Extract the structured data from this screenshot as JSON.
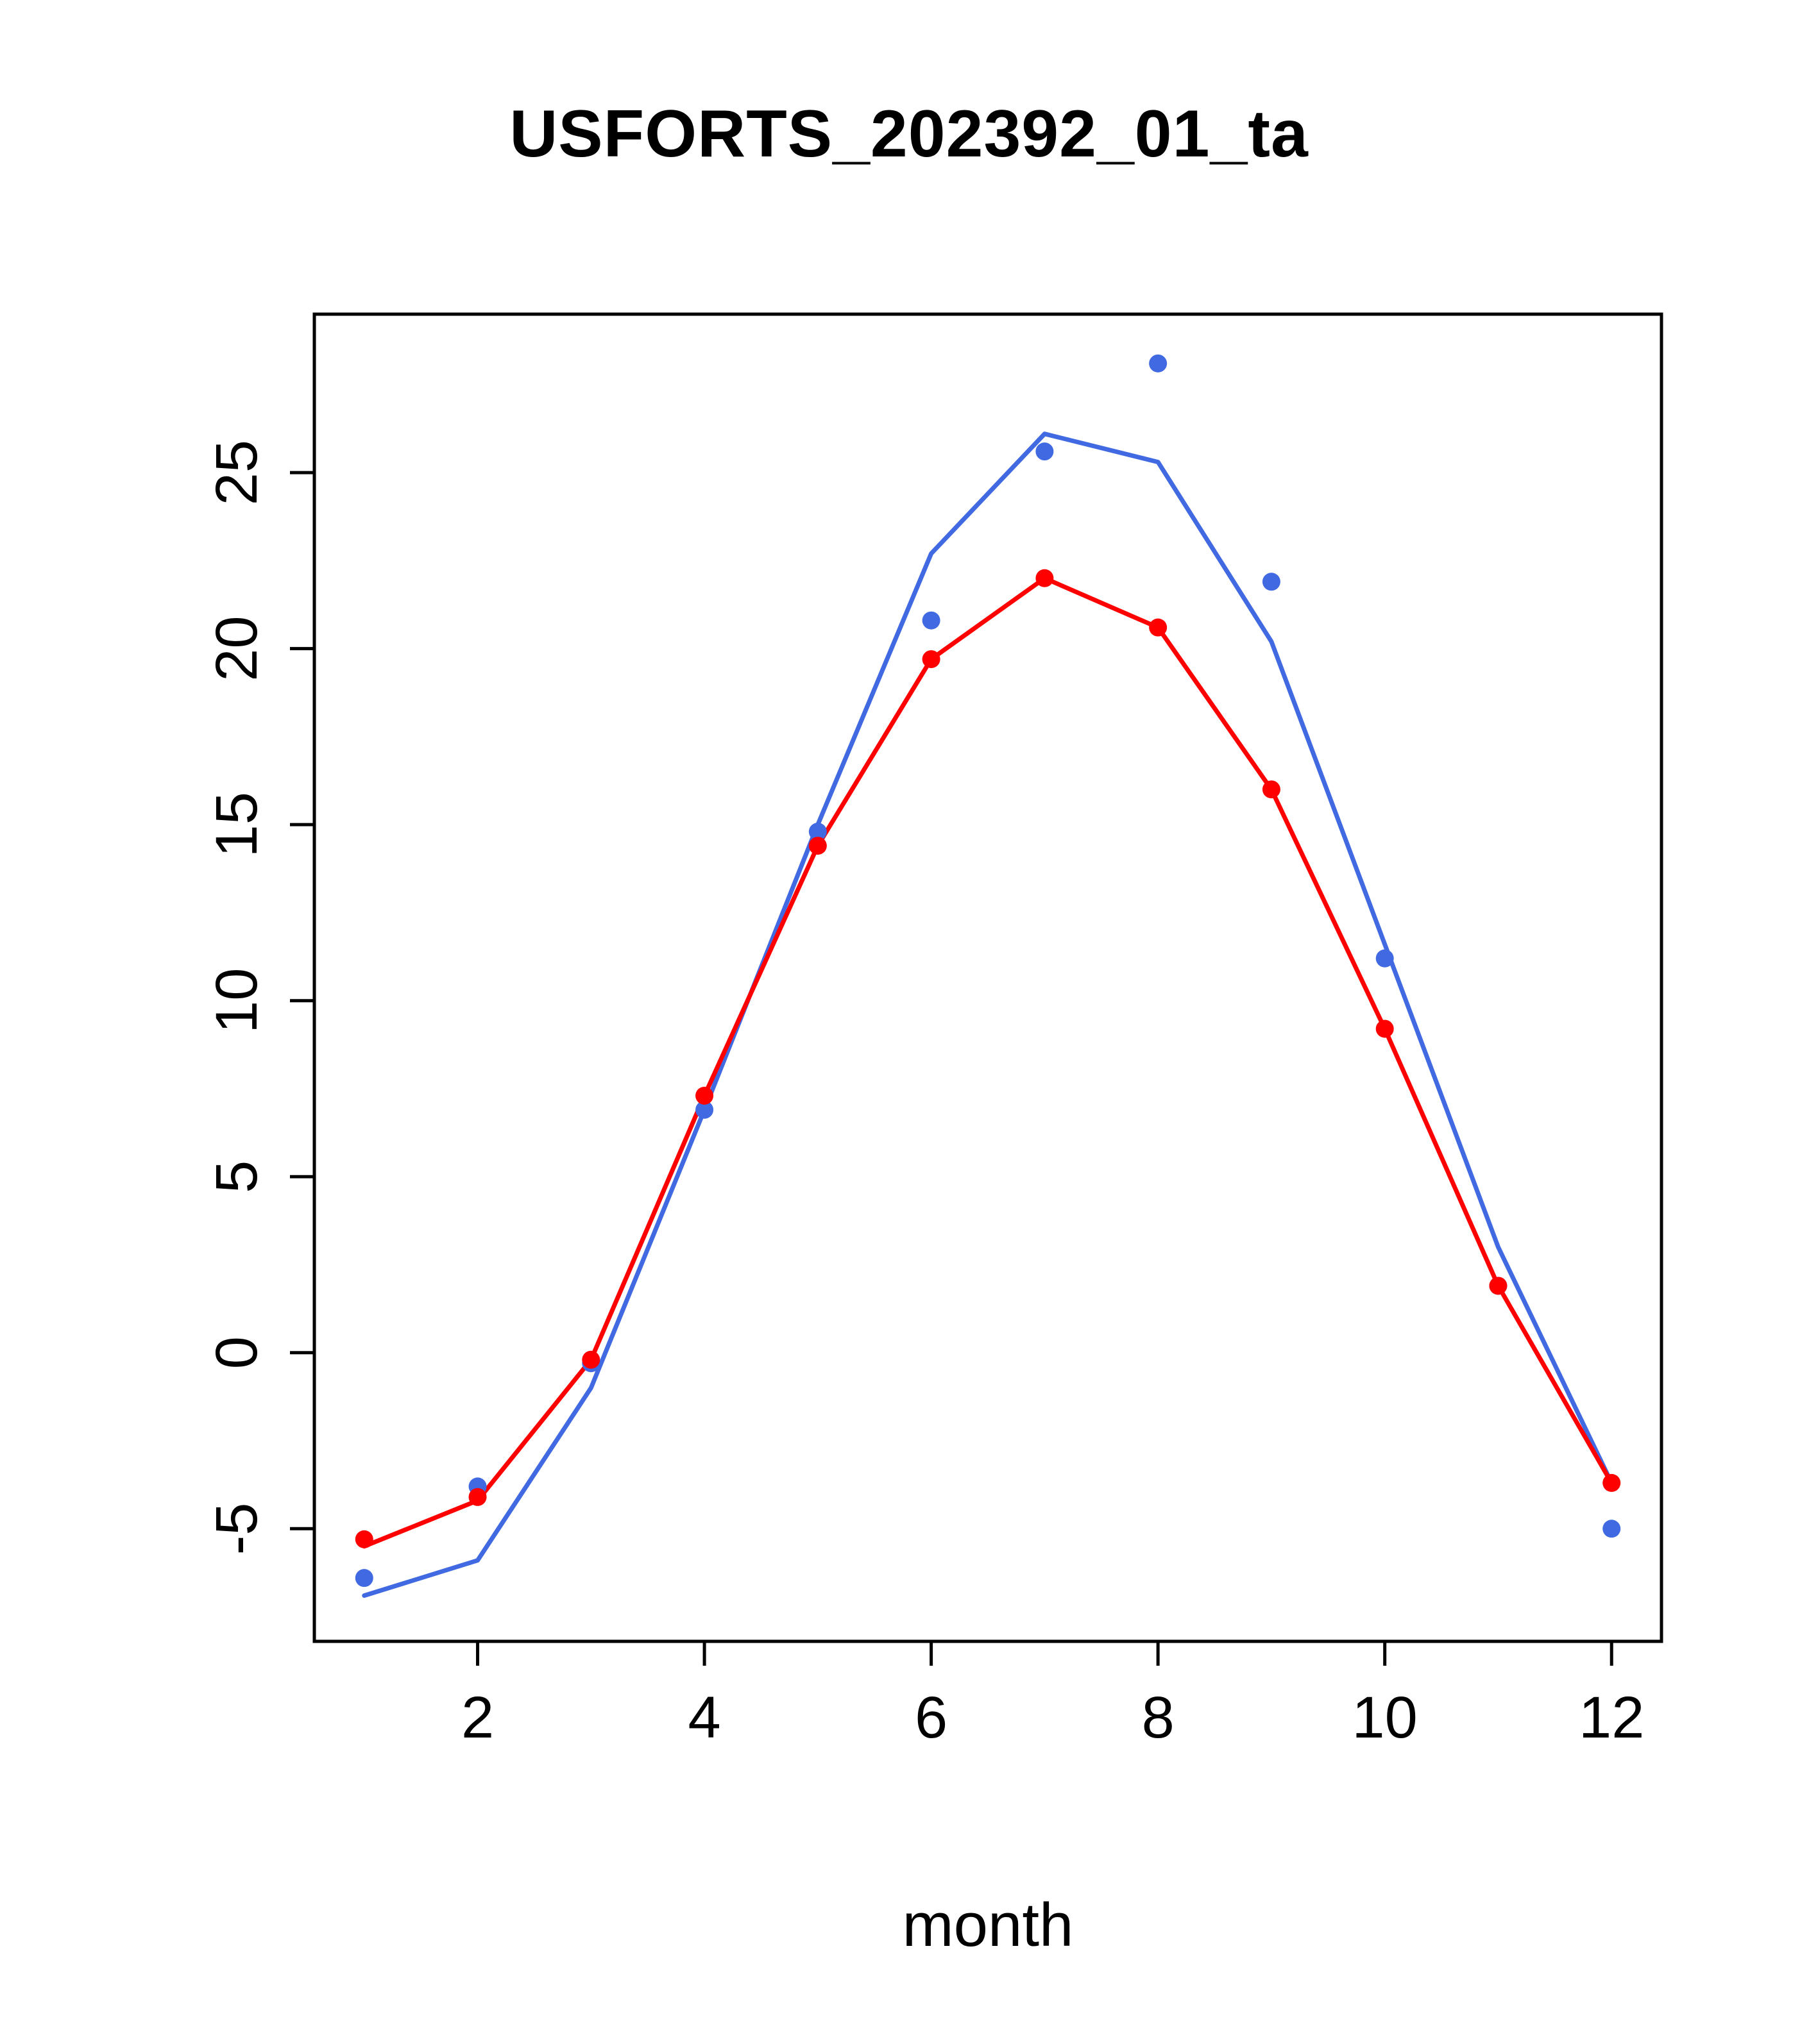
{
  "title": "USFORTS_202392_01_ta",
  "chart_data": {
    "type": "line",
    "title": "USFORTS_202392_01_ta",
    "xlabel": "month",
    "ylabel": "",
    "grid": false,
    "legend": "none",
    "xlim": [
      0.56,
      12.44
    ],
    "ylim": [
      -8.2,
      29.5
    ],
    "x_ticks": [
      2,
      4,
      6,
      8,
      10,
      12
    ],
    "y_ticks": [
      -5,
      0,
      5,
      10,
      15,
      20,
      25
    ],
    "x": [
      1,
      2,
      3,
      4,
      5,
      6,
      7,
      8,
      9,
      10,
      11,
      12
    ],
    "colors": {
      "blue_series": "#4169e1",
      "red_series": "#ff0000"
    },
    "series": [
      {
        "name": "blue-line-model",
        "color": "#4169e1",
        "style": "line",
        "values": [
          -6.9,
          -5.9,
          -1.0,
          6.9,
          15.0,
          22.7,
          26.1,
          25.3,
          20.2,
          11.6,
          3.0,
          -3.7
        ]
      },
      {
        "name": "red-line-model",
        "color": "#ff0000",
        "style": "line",
        "values": [
          -5.5,
          -4.2,
          -0.2,
          7.3,
          14.4,
          19.7,
          22.0,
          20.6,
          16.0,
          9.2,
          1.9,
          -3.7
        ]
      },
      {
        "name": "blue-points-observed",
        "color": "#4169e1",
        "style": "points",
        "values": [
          -6.4,
          -3.8,
          -0.3,
          6.9,
          14.8,
          20.8,
          25.6,
          28.1,
          21.9,
          11.2,
          1.9,
          -5.0
        ]
      },
      {
        "name": "red-points-observed",
        "color": "#ff0000",
        "style": "points",
        "values": [
          -5.3,
          -4.1,
          -0.2,
          7.3,
          14.4,
          19.7,
          22.0,
          20.6,
          16.0,
          9.2,
          1.9,
          -3.7
        ]
      }
    ]
  }
}
